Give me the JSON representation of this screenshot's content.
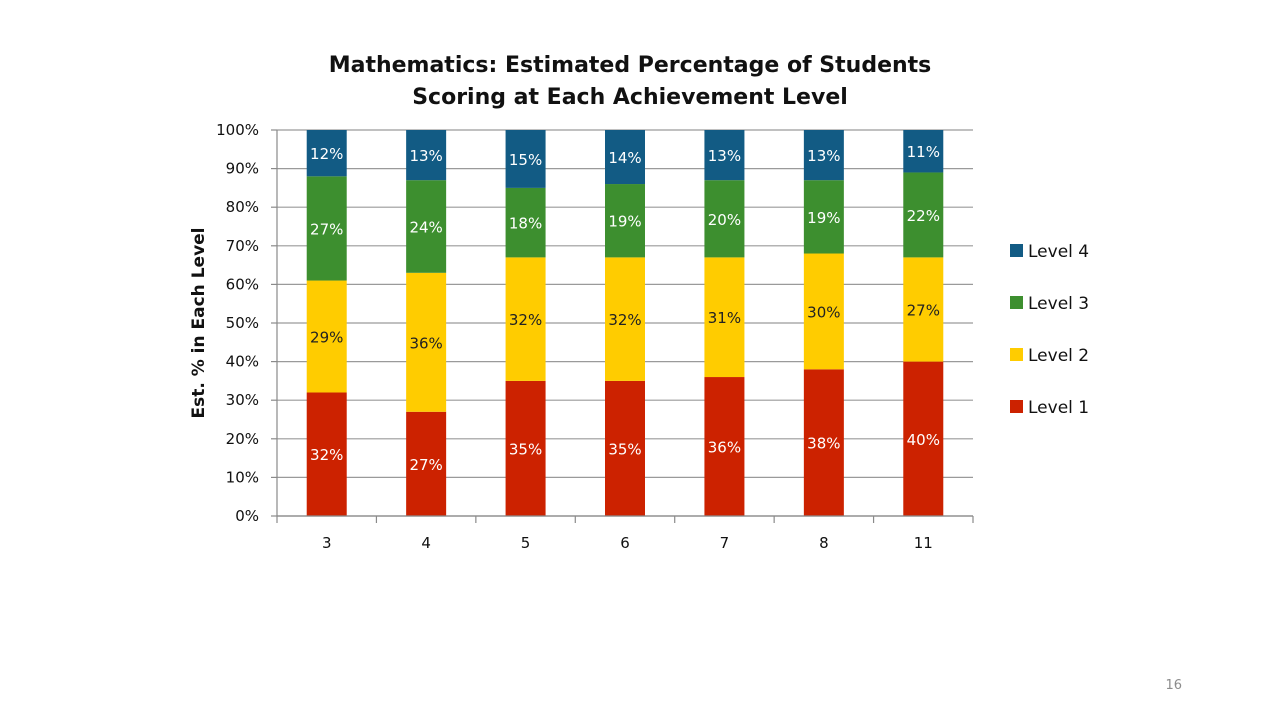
{
  "slide": {
    "title_line1": "Mathematics:  Estimated Percentage of Students",
    "title_line2": "Scoring at Each Achievement Level",
    "page_number": "16"
  },
  "chart_data": {
    "type": "bar",
    "stacked": true,
    "title": "Mathematics:  Estimated Percentage of Students Scoring at Each Achievement Level",
    "xlabel": "",
    "ylabel": "Est. % in Each Level",
    "ylim": [
      0,
      100
    ],
    "y_ticks": [
      "0%",
      "10%",
      "20%",
      "30%",
      "40%",
      "50%",
      "60%",
      "70%",
      "80%",
      "90%",
      "100%"
    ],
    "grid": true,
    "legend_position": "right",
    "categories": [
      "3",
      "4",
      "5",
      "6",
      "7",
      "8",
      "11"
    ],
    "series": [
      {
        "name": "Level 1",
        "color": "#cc2200",
        "values": [
          32,
          27,
          35,
          35,
          36,
          38,
          40
        ],
        "labels": [
          "32%",
          "27%",
          "35%",
          "35%",
          "36%",
          "38%",
          "40%"
        ]
      },
      {
        "name": "Level 2",
        "color": "#ffcc00",
        "values": [
          29,
          36,
          32,
          32,
          31,
          30,
          27
        ],
        "labels": [
          "29%",
          "36%",
          "32%",
          "32%",
          "31%",
          "30%",
          "27%"
        ]
      },
      {
        "name": "Level 3",
        "color": "#3d8f2f",
        "values": [
          27,
          24,
          18,
          19,
          20,
          19,
          22
        ],
        "labels": [
          "27%",
          "24%",
          "18%",
          "19%",
          "20%",
          "19%",
          "22%"
        ]
      },
      {
        "name": "Level 4",
        "color": "#125b84",
        "values": [
          12,
          13,
          15,
          14,
          13,
          13,
          11
        ],
        "labels": [
          "12%",
          "13%",
          "15%",
          "14%",
          "13%",
          "13%",
          "11%"
        ]
      }
    ],
    "legend_order": [
      "Level 4",
      "Level 3",
      "Level 2",
      "Level 1"
    ]
  }
}
